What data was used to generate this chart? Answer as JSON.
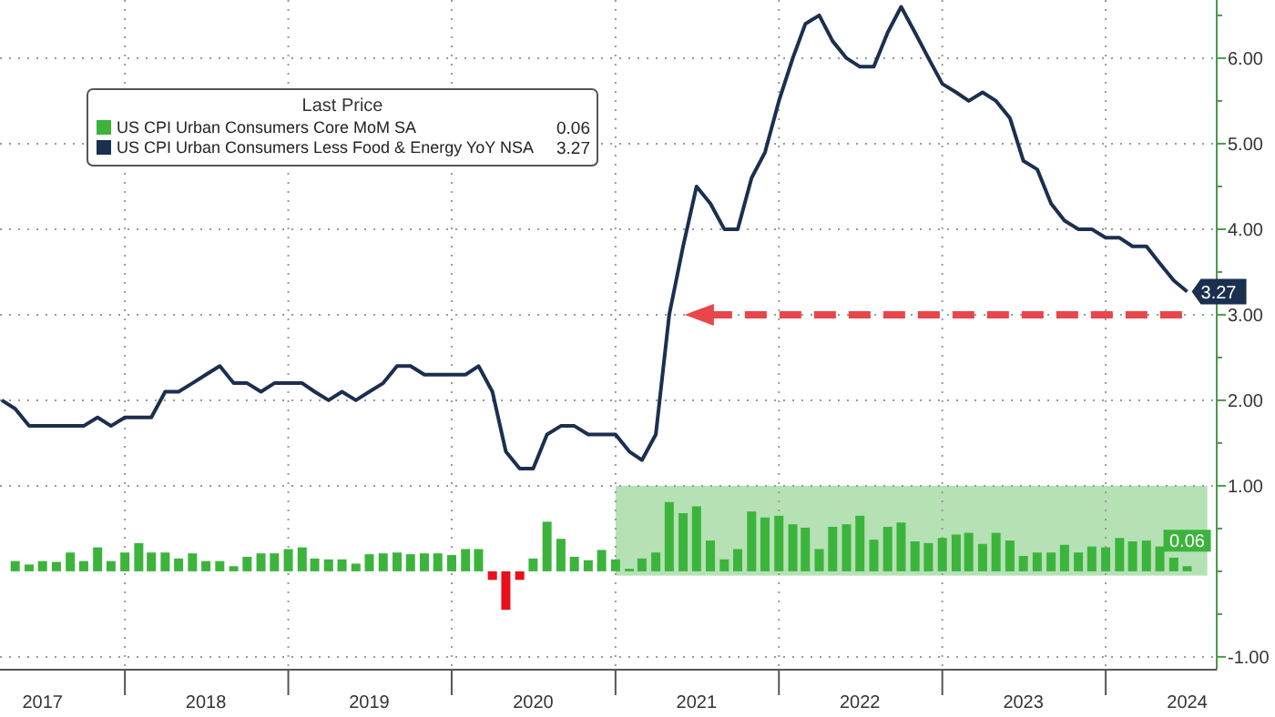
{
  "chart_data": {
    "type": "bar",
    "legend_title": "Last Price",
    "xlim": [
      "2017-03-28",
      "2024-09-05"
    ],
    "xticks": [
      {
        "value": "2017-07-01",
        "label": "2017"
      },
      {
        "value": "2018-01-01",
        "label": null
      },
      {
        "value": "2018-07-01",
        "label": "2018"
      },
      {
        "value": "2019-01-01",
        "label": null
      },
      {
        "value": "2019-07-01",
        "label": "2019"
      },
      {
        "value": "2020-01-01",
        "label": null
      },
      {
        "value": "2020-07-01",
        "label": "2020"
      },
      {
        "value": "2021-01-01",
        "label": null
      },
      {
        "value": "2021-07-01",
        "label": "2021"
      },
      {
        "value": "2022-01-01",
        "label": null
      },
      {
        "value": "2022-07-01",
        "label": "2022"
      },
      {
        "value": "2023-01-01",
        "label": null
      },
      {
        "value": "2023-07-01",
        "label": "2023"
      },
      {
        "value": "2024-01-01",
        "label": null
      },
      {
        "value": "2024-07-01",
        "label": "2024"
      }
    ],
    "ylim": [
      -1.15,
      6.68
    ],
    "yticks": [
      {
        "value": -1,
        "label": "-1.00"
      },
      {
        "value": -0.5,
        "label": null
      },
      {
        "value": 0,
        "label": null
      },
      {
        "value": 0.5,
        "label": null
      },
      {
        "value": 1,
        "label": "1.00"
      },
      {
        "value": 1.5,
        "label": null
      },
      {
        "value": 2,
        "label": "2.00"
      },
      {
        "value": 2.5,
        "label": null
      },
      {
        "value": 3,
        "label": "3.00"
      },
      {
        "value": 3.5,
        "label": null
      },
      {
        "value": 4,
        "label": "4.00"
      },
      {
        "value": 4.5,
        "label": null
      },
      {
        "value": 5,
        "label": "5.00"
      },
      {
        "value": 5.5,
        "label": null
      },
      {
        "value": 6,
        "label": "6.00"
      },
      {
        "value": 6.5,
        "label": null
      }
    ],
    "grid": true,
    "legend": "top left",
    "bands": [
      {
        "axis": "x",
        "from": "2021-01-01",
        "to": "2024-08-15",
        "color": "#a8dca8"
      }
    ],
    "ref_lines": [
      {
        "axis": "y",
        "value": 3,
        "color": "#e8464a",
        "line_style": "dashed"
      }
    ],
    "series": [
      {
        "name": "US CPI Urban Consumers Core MoM SA",
        "color": "#3cb43c",
        "x": [
          "2017-05",
          "2017-06",
          "2017-07",
          "2017-08",
          "2017-09",
          "2017-10",
          "2017-11",
          "2017-12",
          "2018-01",
          "2018-02",
          "2018-03",
          "2018-04",
          "2018-05",
          "2018-06",
          "2018-07",
          "2018-08",
          "2018-09",
          "2018-10",
          "2018-11",
          "2018-12",
          "2019-01",
          "2019-02",
          "2019-03",
          "2019-04",
          "2019-05",
          "2019-06",
          "2019-07",
          "2019-08",
          "2019-09",
          "2019-10",
          "2019-11",
          "2019-12",
          "2020-01",
          "2020-02",
          "2020-03",
          "2020-04",
          "2020-05",
          "2020-06",
          "2020-07",
          "2020-08",
          "2020-09",
          "2020-10",
          "2020-11",
          "2020-12",
          "2021-01",
          "2021-02",
          "2021-03",
          "2021-04",
          "2021-05",
          "2021-06",
          "2021-07",
          "2021-08",
          "2021-09",
          "2021-10",
          "2021-11",
          "2021-12",
          "2022-01",
          "2022-02",
          "2022-03",
          "2022-04",
          "2022-05",
          "2022-06",
          "2022-07",
          "2022-08",
          "2022-09",
          "2022-10",
          "2022-11",
          "2022-12",
          "2023-01",
          "2023-02",
          "2023-03",
          "2023-04",
          "2023-05",
          "2023-06",
          "2023-07",
          "2023-08",
          "2023-09",
          "2023-10",
          "2023-11",
          "2023-12",
          "2024-01",
          "2024-02",
          "2024-03",
          "2024-04",
          "2024-05",
          "2024-06",
          "2024-07"
        ],
        "values": [
          0.12,
          0.08,
          0.12,
          0.11,
          0.22,
          0.12,
          0.28,
          0.12,
          0.22,
          0.33,
          0.22,
          0.22,
          0.15,
          0.21,
          0.12,
          0.12,
          0.06,
          0.17,
          0.21,
          0.21,
          0.26,
          0.28,
          0.15,
          0.14,
          0.14,
          0.09,
          0.2,
          0.21,
          0.22,
          0.2,
          0.21,
          0.21,
          0.19,
          0.26,
          0.26,
          -0.1,
          -0.45,
          -0.1,
          0.15,
          0.58,
          0.38,
          0.17,
          0.13,
          0.25,
          0.14,
          0.03,
          0.15,
          0.22,
          0.81,
          0.68,
          0.76,
          0.36,
          0.14,
          0.26,
          0.7,
          0.63,
          0.65,
          0.55,
          0.51,
          0.26,
          0.52,
          0.55,
          0.65,
          0.37,
          0.52,
          0.57,
          0.35,
          0.33,
          0.39,
          0.43,
          0.45,
          0.32,
          0.45,
          0.36,
          0.18,
          0.22,
          0.22,
          0.31,
          0.22,
          0.29,
          0.28,
          0.39,
          0.35,
          0.36,
          0.29,
          0.16,
          0.06
        ],
        "colors": [
          "#3cb43c",
          "#3cb43c",
          "#3cb43c",
          "#3cb43c",
          "#3cb43c",
          "#3cb43c",
          "#3cb43c",
          "#3cb43c",
          "#3cb43c",
          "#3cb43c",
          "#3cb43c",
          "#3cb43c",
          "#3cb43c",
          "#3cb43c",
          "#3cb43c",
          "#3cb43c",
          "#3cb43c",
          "#3cb43c",
          "#3cb43c",
          "#3cb43c",
          "#3cb43c",
          "#3cb43c",
          "#3cb43c",
          "#3cb43c",
          "#3cb43c",
          "#3cb43c",
          "#3cb43c",
          "#3cb43c",
          "#3cb43c",
          "#3cb43c",
          "#3cb43c",
          "#3cb43c",
          "#3cb43c",
          "#3cb43c",
          "#3cb43c",
          "#e8101a",
          "#e8101a",
          "#e8101a",
          "#3cb43c",
          "#3cb43c",
          "#3cb43c",
          "#3cb43c",
          "#3cb43c",
          "#3cb43c",
          "#3cb43c",
          "#3cb43c",
          "#3cb43c",
          "#3cb43c",
          "#3cb43c",
          "#3cb43c",
          "#3cb43c",
          "#3cb43c",
          "#3cb43c",
          "#3cb43c",
          "#3cb43c",
          "#3cb43c",
          "#3cb43c",
          "#3cb43c",
          "#3cb43c",
          "#3cb43c",
          "#3cb43c",
          "#3cb43c",
          "#3cb43c",
          "#3cb43c",
          "#3cb43c",
          "#3cb43c",
          "#3cb43c",
          "#3cb43c",
          "#3cb43c",
          "#3cb43c",
          "#3cb43c",
          "#3cb43c",
          "#3cb43c",
          "#3cb43c",
          "#3cb43c",
          "#3cb43c",
          "#3cb43c",
          "#3cb43c",
          "#3cb43c",
          "#3cb43c",
          "#3cb43c",
          "#3cb43c",
          "#3cb43c",
          "#3cb43c",
          "#3cb43c",
          "#3cb43c",
          "#3cb43c"
        ],
        "value_labels": [
          null,
          null,
          null,
          null,
          null,
          null,
          null,
          null,
          null,
          null,
          null,
          null,
          null,
          null,
          null,
          null,
          null,
          null,
          null,
          null,
          null,
          null,
          null,
          null,
          null,
          null,
          null,
          null,
          null,
          null,
          null,
          null,
          null,
          null,
          null,
          null,
          null,
          null,
          null,
          null,
          null,
          null,
          null,
          null,
          null,
          null,
          null,
          null,
          null,
          null,
          null,
          null,
          null,
          null,
          null,
          null,
          null,
          null,
          null,
          null,
          null,
          null,
          null,
          null,
          null,
          null,
          null,
          null,
          null,
          null,
          null,
          null,
          null,
          null,
          null,
          null,
          null,
          null,
          null,
          null,
          null,
          null,
          null,
          null,
          null,
          null,
          "0.06"
        ]
      },
      {
        "name": "US CPI Urban Consumers Less Food & Energy YoY NSA",
        "type": "line",
        "color": "#1b2f4f",
        "marker": "none",
        "line_style": "solid",
        "x": [
          "2017-04",
          "2017-05",
          "2017-06",
          "2017-07",
          "2017-08",
          "2017-09",
          "2017-10",
          "2017-11",
          "2017-12",
          "2018-01",
          "2018-02",
          "2018-03",
          "2018-04",
          "2018-05",
          "2018-06",
          "2018-07",
          "2018-08",
          "2018-09",
          "2018-10",
          "2018-11",
          "2018-12",
          "2019-01",
          "2019-02",
          "2019-03",
          "2019-04",
          "2019-05",
          "2019-06",
          "2019-07",
          "2019-08",
          "2019-09",
          "2019-10",
          "2019-11",
          "2019-12",
          "2020-01",
          "2020-02",
          "2020-03",
          "2020-04",
          "2020-05",
          "2020-06",
          "2020-07",
          "2020-08",
          "2020-09",
          "2020-10",
          "2020-11",
          "2020-12",
          "2021-01",
          "2021-02",
          "2021-03",
          "2021-04",
          "2021-05",
          "2021-06",
          "2021-07",
          "2021-08",
          "2021-09",
          "2021-10",
          "2021-11",
          "2021-12",
          "2022-01",
          "2022-02",
          "2022-03",
          "2022-04",
          "2022-05",
          "2022-06",
          "2022-07",
          "2022-08",
          "2022-09",
          "2022-10",
          "2022-11",
          "2022-12",
          "2023-01",
          "2023-02",
          "2023-03",
          "2023-04",
          "2023-05",
          "2023-06",
          "2023-07",
          "2023-08",
          "2023-09",
          "2023-10",
          "2023-11",
          "2023-12",
          "2024-01",
          "2024-02",
          "2024-03",
          "2024-04",
          "2024-05",
          "2024-06",
          "2024-07"
        ],
        "values": [
          2.0,
          1.9,
          1.7,
          1.7,
          1.7,
          1.7,
          1.7,
          1.8,
          1.7,
          1.8,
          1.8,
          1.8,
          2.1,
          2.1,
          2.2,
          2.3,
          2.4,
          2.2,
          2.2,
          2.1,
          2.2,
          2.2,
          2.2,
          2.1,
          2.0,
          2.1,
          2.0,
          2.1,
          2.2,
          2.4,
          2.4,
          2.3,
          2.3,
          2.3,
          2.3,
          2.4,
          2.1,
          1.4,
          1.2,
          1.2,
          1.6,
          1.7,
          1.7,
          1.6,
          1.6,
          1.6,
          1.4,
          1.3,
          1.6,
          3.0,
          3.8,
          4.5,
          4.3,
          4.0,
          4.0,
          4.6,
          4.9,
          5.5,
          6.0,
          6.4,
          6.5,
          6.2,
          6.0,
          5.9,
          5.9,
          6.3,
          6.6,
          6.3,
          6.0,
          5.7,
          5.6,
          5.5,
          5.6,
          5.5,
          5.3,
          4.8,
          4.7,
          4.3,
          4.1,
          4.0,
          4.0,
          3.9,
          3.9,
          3.8,
          3.8,
          3.6,
          3.4,
          3.27
        ],
        "value_labels": [
          null,
          null,
          null,
          null,
          null,
          null,
          null,
          null,
          null,
          null,
          null,
          null,
          null,
          null,
          null,
          null,
          null,
          null,
          null,
          null,
          null,
          null,
          null,
          null,
          null,
          null,
          null,
          null,
          null,
          null,
          null,
          null,
          null,
          null,
          null,
          null,
          null,
          null,
          null,
          null,
          null,
          null,
          null,
          null,
          null,
          null,
          null,
          null,
          null,
          null,
          null,
          null,
          null,
          null,
          null,
          null,
          null,
          null,
          null,
          null,
          null,
          null,
          null,
          null,
          null,
          null,
          null,
          null,
          null,
          null,
          null,
          null,
          null,
          null,
          null,
          null,
          null,
          null,
          null,
          null,
          null,
          null,
          null,
          null,
          null,
          null,
          null,
          "3.27"
        ]
      }
    ]
  }
}
